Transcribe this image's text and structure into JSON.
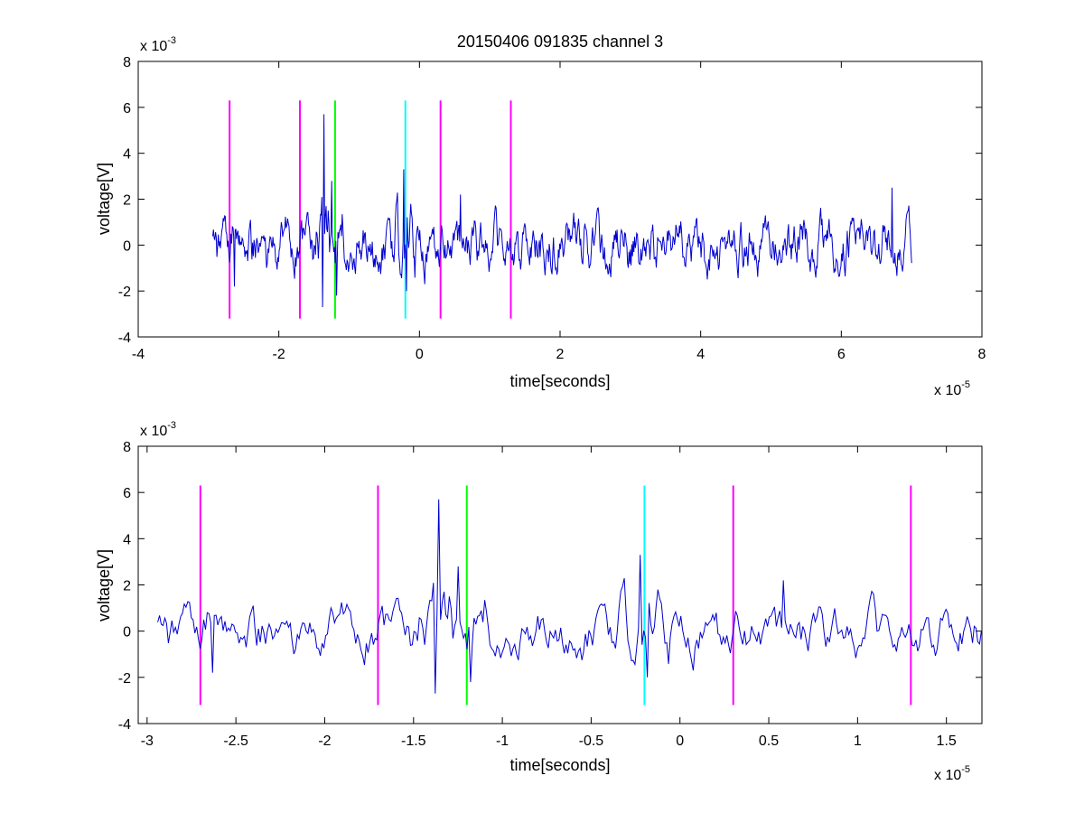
{
  "figure": {
    "title": "20150406 091835 channel 3",
    "colors": {
      "signal": "#0000d0",
      "magenta": "#ff00ff",
      "green": "#00ff00",
      "cyan": "#00ffff",
      "axes": "#000000",
      "background": "#ffffff"
    }
  },
  "chart_data": [
    {
      "type": "line",
      "title": "20150406 091835 channel 3",
      "xlabel": "time[seconds]",
      "ylabel": "voltage[V]",
      "x_exponent_base": "x 10",
      "x_exponent_power": "-5",
      "y_exponent_base": "x 10",
      "y_exponent_power": "-3",
      "xlim": [
        -4,
        8
      ],
      "ylim": [
        -4,
        8
      ],
      "x_ticks": [
        -4,
        -2,
        0,
        2,
        4,
        6,
        8
      ],
      "x_tick_labels": [
        "-4",
        "-2",
        "0",
        "2",
        "4",
        "6",
        "8"
      ],
      "y_ticks": [
        -4,
        -2,
        0,
        2,
        4,
        6,
        8
      ],
      "y_tick_labels": [
        "-4",
        "-2",
        "0",
        "2",
        "4",
        "6",
        "8"
      ],
      "grid": false,
      "signal_range": [
        -2.94,
        7.0
      ],
      "markers": [
        {
          "x": -2.7,
          "color": "magenta",
          "y_range": [
            -3.2,
            6.3
          ]
        },
        {
          "x": -1.7,
          "color": "magenta",
          "y_range": [
            -3.2,
            6.3
          ]
        },
        {
          "x": -1.2,
          "color": "green",
          "y_range": [
            -3.2,
            6.3
          ]
        },
        {
          "x": -0.2,
          "color": "cyan",
          "y_range": [
            -3.2,
            6.3
          ]
        },
        {
          "x": 0.3,
          "color": "magenta",
          "y_range": [
            -3.2,
            6.3
          ]
        },
        {
          "x": 1.3,
          "color": "magenta",
          "y_range": [
            -3.2,
            6.3
          ]
        }
      ],
      "spikes": [
        {
          "x": -2.63,
          "y": -1.8
        },
        {
          "x": -1.36,
          "y": 5.7
        },
        {
          "x": -1.3,
          "y": 1.5
        },
        {
          "x": -1.25,
          "y": 2.8
        },
        {
          "x": -1.38,
          "y": -2.7
        },
        {
          "x": -1.18,
          "y": -2.2
        },
        {
          "x": -0.22,
          "y": 3.3
        },
        {
          "x": -0.18,
          "y": -2.0
        },
        {
          "x": 0.58,
          "y": 2.2
        },
        {
          "x": 6.72,
          "y": 2.5
        }
      ]
    },
    {
      "type": "line",
      "title": "",
      "xlabel": "time[seconds]",
      "ylabel": "voltage[V]",
      "x_exponent_base": "x 10",
      "x_exponent_power": "-5",
      "y_exponent_base": "x 10",
      "y_exponent_power": "-3",
      "xlim": [
        -3.05,
        1.7
      ],
      "ylim": [
        -4,
        8
      ],
      "x_ticks": [
        -3,
        -2.5,
        -2,
        -1.5,
        -1,
        -0.5,
        0,
        0.5,
        1,
        1.5
      ],
      "x_tick_labels": [
        "-3",
        "-2.5",
        "-2",
        "-1.5",
        "-1",
        "-0.5",
        "0",
        "0.5",
        "1",
        "1.5"
      ],
      "y_ticks": [
        -4,
        -2,
        0,
        2,
        4,
        6,
        8
      ],
      "y_tick_labels": [
        "-4",
        "-2",
        "0",
        "2",
        "4",
        "6",
        "8"
      ],
      "grid": false,
      "signal_range": [
        -2.94,
        1.7
      ],
      "markers": [
        {
          "x": -2.7,
          "color": "magenta",
          "y_range": [
            -3.2,
            6.3
          ]
        },
        {
          "x": -1.7,
          "color": "magenta",
          "y_range": [
            -3.2,
            6.3
          ]
        },
        {
          "x": -1.2,
          "color": "green",
          "y_range": [
            -3.2,
            6.3
          ]
        },
        {
          "x": -0.2,
          "color": "cyan",
          "y_range": [
            -3.2,
            6.3
          ]
        },
        {
          "x": 0.3,
          "color": "magenta",
          "y_range": [
            -3.2,
            6.3
          ]
        },
        {
          "x": 1.3,
          "color": "magenta",
          "y_range": [
            -3.2,
            6.3
          ]
        }
      ],
      "spikes": [
        {
          "x": -2.63,
          "y": -1.8
        },
        {
          "x": -1.36,
          "y": 5.7
        },
        {
          "x": -1.3,
          "y": 1.5
        },
        {
          "x": -1.25,
          "y": 2.8
        },
        {
          "x": -1.38,
          "y": -2.7
        },
        {
          "x": -1.18,
          "y": -2.2
        },
        {
          "x": -0.22,
          "y": 3.3
        },
        {
          "x": -0.18,
          "y": -2.0
        },
        {
          "x": 0.58,
          "y": 2.2
        }
      ]
    }
  ]
}
